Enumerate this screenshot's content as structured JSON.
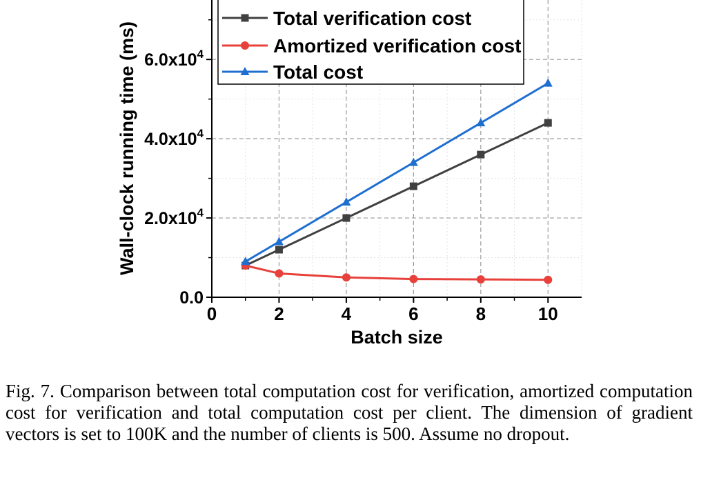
{
  "chart_data": {
    "type": "line",
    "xlabel": "Batch size",
    "ylabel": "Wall-clock running time (ms)",
    "xlim": [
      0,
      11
    ],
    "ylim": [
      0,
      75000
    ],
    "x_ticks": [
      0,
      2,
      4,
      6,
      8,
      10
    ],
    "x_tick_labels": [
      "0",
      "2",
      "4",
      "6",
      "8",
      "10"
    ],
    "y_ticks": [
      0,
      20000,
      40000,
      60000
    ],
    "y_tick_labels": [
      {
        "base": "0.0",
        "exp": ""
      },
      {
        "base": "2.0x10",
        "exp": "4"
      },
      {
        "base": "4.0x10",
        "exp": "4"
      },
      {
        "base": "6.0x10",
        "exp": "4"
      }
    ],
    "grid": true,
    "legend_position": "top-left",
    "series": [
      {
        "name": "Total verification cost",
        "color": "#404040",
        "marker": "square",
        "x": [
          1,
          2,
          4,
          6,
          8,
          10
        ],
        "values": [
          8000,
          12000,
          20000,
          28000,
          36000,
          44000
        ]
      },
      {
        "name": "Amortized verification cost",
        "color": "#e8403a",
        "marker": "circle",
        "x": [
          1,
          2,
          4,
          6,
          8,
          10
        ],
        "values": [
          8000,
          6000,
          5000,
          4600,
          4500,
          4400
        ]
      },
      {
        "name": "Total cost",
        "color": "#1f6fd1",
        "marker": "triangle",
        "x": [
          1,
          2,
          4,
          6,
          8,
          10
        ],
        "values": [
          9000,
          14000,
          24000,
          34000,
          44000,
          54000
        ]
      }
    ]
  },
  "caption": "Fig. 7.   Comparison between total computation cost for verification, amortized computation cost for verification and total computation cost per client. The dimension of gradient vectors is set to 100K and the number of clients is 500. Assume no dropout."
}
